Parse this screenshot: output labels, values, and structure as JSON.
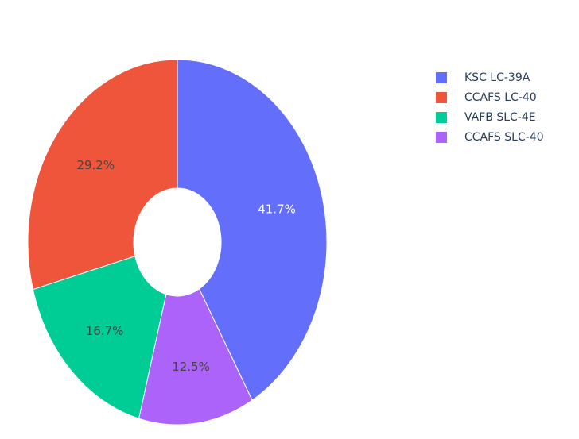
{
  "chart_data": {
    "type": "pie",
    "hole": true,
    "sort": "descending",
    "direction": "clockwise",
    "start": "top",
    "categories": [
      "KSC LC-39A",
      "CCAFS LC-40",
      "VAFB SLC-4E",
      "CCAFS SLC-40"
    ],
    "values": [
      41.7,
      29.2,
      16.7,
      12.5
    ],
    "value_labels": [
      "41.7%",
      "29.2%",
      "16.7%",
      "12.5%"
    ],
    "colors": [
      "#636efa",
      "#ef553b",
      "#00cc96",
      "#ab63fa"
    ],
    "label_colors": [
      "#ffffff",
      "#444444",
      "#444444",
      "#444444"
    ],
    "slice_order": [
      0,
      3,
      2,
      1
    ],
    "legend_position": "top-right"
  },
  "legend": {
    "items": [
      {
        "label": "KSC LC-39A",
        "color": "#636efa"
      },
      {
        "label": "CCAFS LC-40",
        "color": "#ef553b"
      },
      {
        "label": "VAFB SLC-4E",
        "color": "#00cc96"
      },
      {
        "label": "CCAFS SLC-40",
        "color": "#ab63fa"
      }
    ]
  }
}
